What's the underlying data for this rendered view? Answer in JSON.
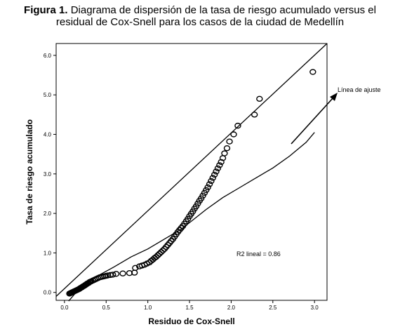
{
  "caption": {
    "label": "Figura 1.",
    "line1": "Diagrama de dispersión de la tasa de riesgo acumulado versus el",
    "line2": "residual de Cox-Snell para los casos de la ciudad de Medellín"
  },
  "chart_data": {
    "type": "scatter",
    "xlabel": "Residuo de Cox-Snell",
    "ylabel": "Tasa de riesgo acumulado",
    "xlim": [
      -0.1,
      3.15
    ],
    "ylim": [
      -0.2,
      6.3
    ],
    "x_ticks": [
      "0.0",
      "0.5",
      "1.0",
      "1.5",
      "2.0",
      "2.5",
      "3.0"
    ],
    "y_ticks": [
      "0.0",
      "1.0",
      "2.0",
      "3.0",
      "4.0",
      "5.0",
      "6.0"
    ],
    "grid": false,
    "annotations": {
      "r2_text": "R2 lineal = 0.86",
      "fit_label": "Línea de ajuste"
    },
    "series": [
      {
        "type": "scatter",
        "marker": "open-circle",
        "points": [
          [
            0.06,
            -0.03
          ],
          [
            0.07,
            -0.02
          ],
          [
            0.08,
            -0.01
          ],
          [
            0.09,
            0.0
          ],
          [
            0.1,
            0.01
          ],
          [
            0.11,
            0.02
          ],
          [
            0.12,
            0.03
          ],
          [
            0.13,
            0.04
          ],
          [
            0.14,
            0.05
          ],
          [
            0.15,
            0.06
          ],
          [
            0.16,
            0.07
          ],
          [
            0.17,
            0.08
          ],
          [
            0.18,
            0.09
          ],
          [
            0.19,
            0.11
          ],
          [
            0.2,
            0.12
          ],
          [
            0.21,
            0.13
          ],
          [
            0.22,
            0.15
          ],
          [
            0.23,
            0.16
          ],
          [
            0.24,
            0.17
          ],
          [
            0.25,
            0.19
          ],
          [
            0.26,
            0.2
          ],
          [
            0.27,
            0.22
          ],
          [
            0.28,
            0.23
          ],
          [
            0.29,
            0.24
          ],
          [
            0.3,
            0.26
          ],
          [
            0.31,
            0.27
          ],
          [
            0.32,
            0.28
          ],
          [
            0.34,
            0.3
          ],
          [
            0.36,
            0.32
          ],
          [
            0.38,
            0.34
          ],
          [
            0.4,
            0.36
          ],
          [
            0.42,
            0.38
          ],
          [
            0.44,
            0.39
          ],
          [
            0.46,
            0.4
          ],
          [
            0.48,
            0.41
          ],
          [
            0.5,
            0.42
          ],
          [
            0.52,
            0.43
          ],
          [
            0.55,
            0.44
          ],
          [
            0.58,
            0.45
          ],
          [
            0.62,
            0.47
          ],
          [
            0.7,
            0.48
          ],
          [
            0.78,
            0.49
          ],
          [
            0.84,
            0.5
          ],
          [
            0.85,
            0.62
          ],
          [
            0.9,
            0.66
          ],
          [
            0.93,
            0.68
          ],
          [
            0.96,
            0.7
          ],
          [
            0.99,
            0.73
          ],
          [
            1.02,
            0.76
          ],
          [
            1.04,
            0.8
          ],
          [
            1.06,
            0.83
          ],
          [
            1.08,
            0.87
          ],
          [
            1.1,
            0.9
          ],
          [
            1.12,
            0.94
          ],
          [
            1.14,
            0.98
          ],
          [
            1.16,
            1.02
          ],
          [
            1.18,
            1.06
          ],
          [
            1.2,
            1.1
          ],
          [
            1.22,
            1.15
          ],
          [
            1.24,
            1.2
          ],
          [
            1.26,
            1.25
          ],
          [
            1.28,
            1.3
          ],
          [
            1.3,
            1.35
          ],
          [
            1.32,
            1.41
          ],
          [
            1.34,
            1.47
          ],
          [
            1.36,
            1.53
          ],
          [
            1.38,
            1.58
          ],
          [
            1.4,
            1.63
          ],
          [
            1.42,
            1.68
          ],
          [
            1.44,
            1.74
          ],
          [
            1.46,
            1.8
          ],
          [
            1.48,
            1.86
          ],
          [
            1.5,
            1.93
          ],
          [
            1.52,
            1.99
          ],
          [
            1.54,
            2.05
          ],
          [
            1.56,
            2.12
          ],
          [
            1.58,
            2.18
          ],
          [
            1.6,
            2.25
          ],
          [
            1.62,
            2.32
          ],
          [
            1.64,
            2.38
          ],
          [
            1.66,
            2.45
          ],
          [
            1.68,
            2.52
          ],
          [
            1.7,
            2.59
          ],
          [
            1.72,
            2.66
          ],
          [
            1.74,
            2.74
          ],
          [
            1.76,
            2.82
          ],
          [
            1.78,
            2.9
          ],
          [
            1.8,
            2.98
          ],
          [
            1.82,
            3.06
          ],
          [
            1.84,
            3.14
          ],
          [
            1.86,
            3.22
          ],
          [
            1.88,
            3.3
          ],
          [
            1.9,
            3.4
          ],
          [
            1.92,
            3.52
          ],
          [
            1.95,
            3.65
          ],
          [
            1.98,
            3.82
          ],
          [
            2.03,
            4.0
          ],
          [
            2.08,
            4.22
          ],
          [
            2.28,
            4.5
          ],
          [
            2.34,
            4.9
          ],
          [
            2.98,
            5.58
          ]
        ]
      },
      {
        "type": "line",
        "name": "Línea de ajuste",
        "points": [
          [
            0.05,
            -0.22
          ],
          [
            0.2,
            0.15
          ],
          [
            0.4,
            0.42
          ],
          [
            0.6,
            0.65
          ],
          [
            0.8,
            0.9
          ],
          [
            1.0,
            1.1
          ],
          [
            1.2,
            1.35
          ],
          [
            1.4,
            1.6
          ],
          [
            1.55,
            1.85
          ],
          [
            1.7,
            2.1
          ],
          [
            1.9,
            2.4
          ],
          [
            2.1,
            2.65
          ],
          [
            2.3,
            2.9
          ],
          [
            2.5,
            3.15
          ],
          [
            2.7,
            3.45
          ],
          [
            2.9,
            3.8
          ],
          [
            3.0,
            4.05
          ]
        ]
      },
      {
        "type": "line",
        "name": "reference",
        "points": [
          [
            -0.1,
            -0.1
          ],
          [
            3.15,
            6.3
          ]
        ]
      }
    ]
  }
}
